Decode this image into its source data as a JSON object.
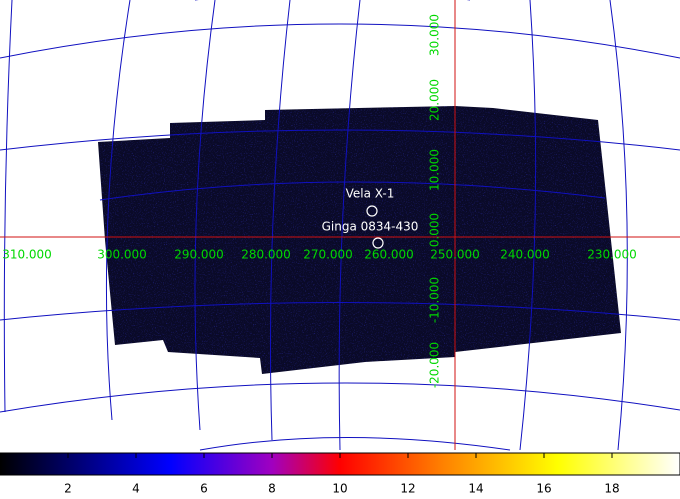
{
  "sky_map": {
    "longitude_labels": [
      "310.000",
      "300.000",
      "290.000",
      "280.000",
      "270.000",
      "260.000",
      "250.000",
      "240.000",
      "230.000"
    ],
    "latitude_labels": [
      "30.000",
      "20.000",
      "10.000",
      "0.000",
      "-10.000",
      "-20.000"
    ],
    "sources": [
      {
        "name": "Vela X-1"
      },
      {
        "name": "Ginga 0834-430"
      }
    ]
  },
  "colorbar": {
    "lim": [
      0,
      20
    ],
    "ticks": [
      2,
      4,
      6,
      8,
      10,
      12,
      14,
      16,
      18
    ]
  }
}
